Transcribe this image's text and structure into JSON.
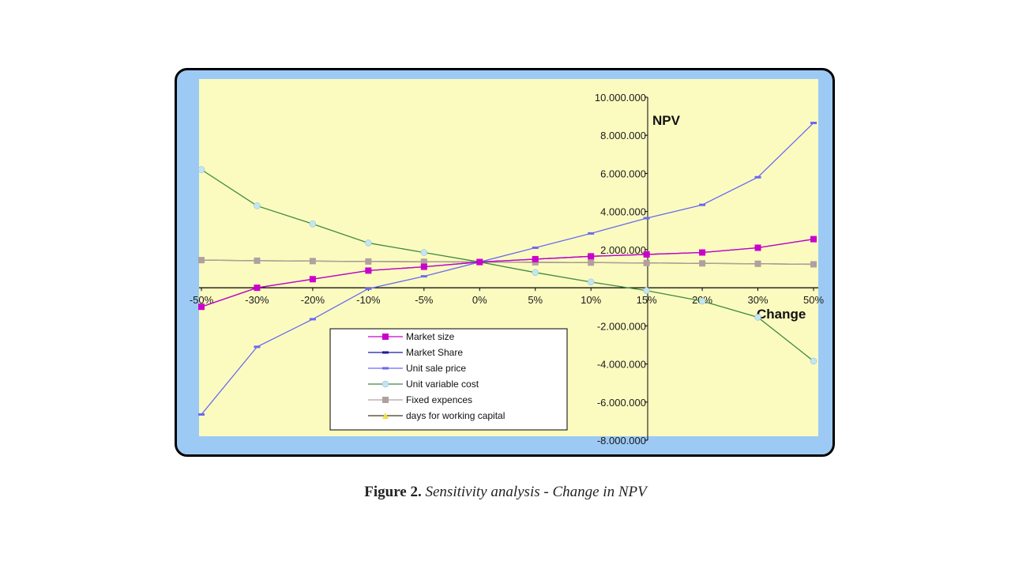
{
  "chart_data": {
    "type": "line",
    "x_axis_label": "Change",
    "y_axis_label": "NPV",
    "categories": [
      "-50%",
      "-30%",
      "-20%",
      "-10%",
      "-5%",
      "0%",
      "5%",
      "10%",
      "15%",
      "20%",
      "30%",
      "50%"
    ],
    "y_ticks": [
      "10.000.000",
      "8.000.000",
      "6.000.000",
      "4.000.000",
      "2.000.000",
      "0",
      "-2.000.000",
      "-4.000.000",
      "-6.000.000",
      "-8.000.000"
    ],
    "ylim": [
      -8000000,
      10000000
    ],
    "grid": false,
    "plot_background": "#fbfbc0",
    "legend_position": "bottom-left",
    "series": [
      {
        "name": "Market size",
        "color": "#cc00cc",
        "marker": "square",
        "values": [
          -1000000,
          0,
          450000,
          900000,
          1100000,
          1350000,
          1500000,
          1650000,
          1750000,
          1850000,
          2100000,
          2550000
        ]
      },
      {
        "name": "Market Share",
        "color": "#1a1aa0",
        "marker": "dash",
        "values": [
          -1000000,
          0,
          450000,
          900000,
          1100000,
          1350000,
          1500000,
          1650000,
          1750000,
          1850000,
          2100000,
          2550000
        ]
      },
      {
        "name": "Unit sale price",
        "color": "#6a6af0",
        "marker": "dash",
        "values": [
          -6650000,
          -3100000,
          -1650000,
          -50000,
          600000,
          1350000,
          2100000,
          2850000,
          3650000,
          4350000,
          5800000,
          8650000
        ]
      },
      {
        "name": "Unit variable cost",
        "color": "#3f8a3f",
        "marker": "circle",
        "values": [
          6200000,
          4300000,
          3350000,
          2350000,
          1850000,
          1350000,
          800000,
          300000,
          -150000,
          -700000,
          -1550000,
          -3850000
        ]
      },
      {
        "name": "Fixed expences",
        "color": "#b0a0a0",
        "marker": "square",
        "values": [
          1450000,
          1420000,
          1400000,
          1380000,
          1365000,
          1350000,
          1335000,
          1320000,
          1300000,
          1280000,
          1260000,
          1230000
        ]
      },
      {
        "name": "days for working capital",
        "color": "#3a3a1a",
        "marker": "triangle",
        "values": [
          1450000,
          1420000,
          1400000,
          1380000,
          1365000,
          1350000,
          1335000,
          1320000,
          1300000,
          1280000,
          1260000,
          1230000
        ]
      }
    ]
  },
  "caption": {
    "label": "Figure 2.",
    "text": "Sensitivity analysis - Change in NPV"
  }
}
